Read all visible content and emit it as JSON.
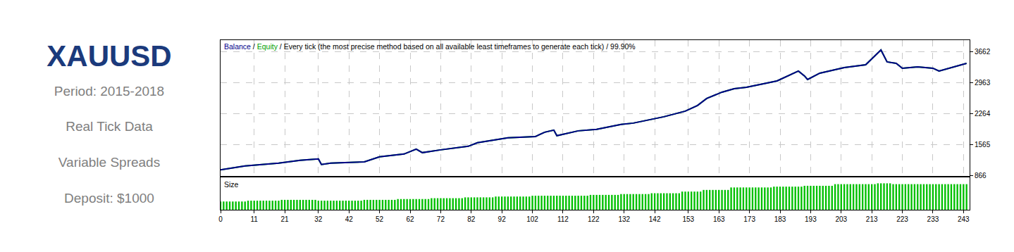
{
  "panel": {
    "title": "XAUUSD",
    "lines": [
      "Period: 2015-2018",
      "Real Tick Data",
      "Variable Spreads",
      "Deposit: $1000"
    ]
  },
  "chart_data": [
    {
      "type": "line",
      "title": "Balance / Equity / Every tick (the most precise method based on all available least timeframes to generate each tick) / 99.90%",
      "x": [
        0,
        8,
        19,
        26,
        32,
        33,
        36,
        47,
        52,
        60,
        64,
        66,
        72,
        81,
        84,
        94,
        103,
        106,
        109,
        110,
        117,
        123,
        131,
        135,
        145,
        152,
        156,
        159,
        164,
        168,
        172,
        182,
        189,
        191,
        192,
        196,
        204,
        211,
        216,
        218,
        221,
        223,
        228,
        233,
        235,
        240,
        244
      ],
      "series": [
        {
          "name": "Equity",
          "color": "#00a000",
          "values": [
            1000,
            1087,
            1150,
            1213,
            1245,
            1120,
            1150,
            1180,
            1293,
            1356,
            1466,
            1387,
            1450,
            1530,
            1610,
            1720,
            1750,
            1846,
            1893,
            1767,
            1877,
            1909,
            2020,
            2051,
            2193,
            2320,
            2446,
            2604,
            2746,
            2825,
            2857,
            2999,
            3220,
            3110,
            3031,
            3173,
            3299,
            3362,
            3694,
            3426,
            3394,
            3283,
            3315,
            3283,
            3220,
            3315,
            3394
          ]
        },
        {
          "name": "Balance",
          "color": "#00008b",
          "values": [
            1000,
            1087,
            1150,
            1213,
            1245,
            1120,
            1150,
            1180,
            1293,
            1356,
            1466,
            1387,
            1450,
            1530,
            1610,
            1720,
            1750,
            1846,
            1893,
            1767,
            1877,
            1909,
            2020,
            2051,
            2193,
            2320,
            2446,
            2604,
            2746,
            2825,
            2857,
            2999,
            3220,
            3110,
            3031,
            3173,
            3299,
            3362,
            3694,
            3426,
            3394,
            3283,
            3315,
            3283,
            3220,
            3315,
            3394
          ]
        }
      ],
      "xlim": [
        0,
        245
      ],
      "ylim": [
        866,
        3915
      ],
      "xticks": [
        0,
        11,
        21,
        32,
        42,
        52,
        62,
        72,
        82,
        92,
        102,
        112,
        122,
        132,
        142,
        153,
        163,
        173,
        183,
        193,
        203,
        213,
        223,
        233,
        243
      ],
      "yticks": [
        866,
        1565,
        2264,
        2963,
        3662
      ],
      "grid": true,
      "tick_labels": "y"
    },
    {
      "type": "bar",
      "title": "Size",
      "x": [
        0,
        1,
        2,
        3,
        4,
        5,
        6,
        7,
        8,
        9,
        10,
        11,
        12,
        13,
        14,
        15,
        16,
        17,
        18,
        19,
        20,
        21,
        22,
        23,
        24,
        25,
        26,
        27,
        28,
        29,
        30,
        31,
        32,
        33,
        34,
        35,
        36,
        37,
        38,
        39,
        40,
        41,
        42,
        43,
        44,
        45,
        46,
        47,
        48,
        49,
        50,
        51,
        52,
        53,
        54,
        55,
        56,
        57,
        58,
        59,
        60,
        61,
        62,
        63,
        64,
        65,
        66,
        67,
        68,
        69,
        70,
        71,
        72,
        73,
        74,
        75,
        76,
        77,
        78,
        79,
        80,
        81,
        82,
        83,
        84,
        85,
        86,
        87,
        88,
        89,
        90,
        91,
        92,
        93,
        94,
        95,
        96,
        97,
        98,
        99,
        100,
        101,
        102,
        103,
        104,
        105,
        106,
        107,
        108,
        109,
        110,
        111,
        112,
        113,
        114,
        115,
        116,
        117,
        118,
        119,
        120,
        121,
        122,
        123,
        124,
        125,
        126,
        127,
        128,
        129,
        130,
        131,
        132,
        133,
        134,
        135,
        136,
        137,
        138,
        139,
        140,
        141,
        142,
        143,
        144,
        145,
        146,
        147,
        148,
        149,
        150,
        151,
        152,
        153,
        154,
        155,
        156,
        157,
        158,
        159,
        160,
        161,
        162,
        163,
        164,
        165,
        166,
        167,
        168,
        169,
        170,
        171,
        172,
        173,
        174,
        175,
        176,
        177,
        178,
        179,
        180,
        181,
        182,
        183,
        184,
        185,
        186,
        187,
        188,
        189,
        190,
        191,
        192,
        193,
        194,
        195,
        196,
        197,
        198,
        199,
        200,
        201,
        202,
        203,
        204,
        205,
        206,
        207,
        208,
        209,
        210,
        211,
        212,
        213,
        214,
        215,
        216,
        217,
        218,
        219,
        220,
        221,
        222,
        223,
        224,
        225,
        226,
        227,
        228,
        229,
        230,
        231,
        232,
        233,
        234,
        235,
        236,
        237,
        238,
        239,
        240,
        241,
        242,
        243,
        244
      ],
      "values": [
        0.1,
        0.1,
        0.1,
        0.1,
        0.1,
        0.1,
        0.1,
        0.1,
        0.1,
        0.11,
        0.11,
        0.11,
        0.11,
        0.11,
        0.11,
        0.11,
        0.11,
        0.11,
        0.11,
        0.11,
        0.12,
        0.12,
        0.12,
        0.12,
        0.12,
        0.12,
        0.12,
        0.12,
        0.12,
        0.12,
        0.12,
        0.12,
        0.11,
        0.11,
        0.11,
        0.11,
        0.11,
        0.11,
        0.11,
        0.11,
        0.11,
        0.11,
        0.11,
        0.11,
        0.11,
        0.11,
        0.11,
        0.12,
        0.12,
        0.12,
        0.12,
        0.12,
        0.12,
        0.12,
        0.12,
        0.12,
        0.12,
        0.12,
        0.13,
        0.13,
        0.13,
        0.13,
        0.13,
        0.13,
        0.13,
        0.13,
        0.13,
        0.13,
        0.13,
        0.14,
        0.14,
        0.14,
        0.14,
        0.14,
        0.14,
        0.14,
        0.14,
        0.14,
        0.14,
        0.14,
        0.15,
        0.15,
        0.15,
        0.15,
        0.15,
        0.15,
        0.15,
        0.15,
        0.15,
        0.15,
        0.16,
        0.16,
        0.16,
        0.16,
        0.16,
        0.16,
        0.16,
        0.16,
        0.16,
        0.16,
        0.16,
        0.16,
        0.17,
        0.17,
        0.17,
        0.17,
        0.17,
        0.17,
        0.17,
        0.17,
        0.17,
        0.17,
        0.17,
        0.17,
        0.17,
        0.17,
        0.17,
        0.17,
        0.17,
        0.17,
        0.17,
        0.18,
        0.18,
        0.18,
        0.18,
        0.18,
        0.18,
        0.18,
        0.18,
        0.18,
        0.18,
        0.19,
        0.19,
        0.19,
        0.19,
        0.19,
        0.19,
        0.19,
        0.19,
        0.19,
        0.19,
        0.2,
        0.2,
        0.2,
        0.2,
        0.2,
        0.2,
        0.2,
        0.2,
        0.2,
        0.2,
        0.22,
        0.22,
        0.22,
        0.22,
        0.22,
        0.22,
        0.22,
        0.24,
        0.24,
        0.24,
        0.24,
        0.24,
        0.24,
        0.24,
        0.24,
        0.24,
        0.27,
        0.27,
        0.27,
        0.27,
        0.27,
        0.27,
        0.27,
        0.27,
        0.27,
        0.27,
        0.27,
        0.27,
        0.27,
        0.27,
        0.28,
        0.28,
        0.28,
        0.28,
        0.28,
        0.28,
        0.28,
        0.28,
        0.28,
        0.28,
        0.29,
        0.29,
        0.29,
        0.29,
        0.29,
        0.29,
        0.29,
        0.29,
        0.29,
        0.29,
        0.31,
        0.31,
        0.31,
        0.31,
        0.31,
        0.31,
        0.31,
        0.31,
        0.31,
        0.31,
        0.31,
        0.31,
        0.31,
        0.31,
        0.32,
        0.32,
        0.32,
        0.32,
        0.32,
        0.31,
        0.31,
        0.31,
        0.31,
        0.31,
        0.31,
        0.31,
        0.31,
        0.31,
        0.31,
        0.31,
        0.31,
        0.31,
        0.31,
        0.31,
        0.31,
        0.31,
        0.31,
        0.31,
        0.31,
        0.31,
        0.31,
        0.31,
        0.31,
        0.31
      ],
      "color": "#00c000",
      "xlim": [
        0,
        245
      ],
      "ylim": [
        0,
        0.39
      ],
      "xticks": [
        0,
        11,
        21,
        32,
        42,
        52,
        62,
        72,
        82,
        92,
        102,
        112,
        122,
        132,
        142,
        153,
        163,
        173,
        183,
        193,
        203,
        213,
        223,
        233,
        243
      ],
      "grid": false,
      "tick_labels": "x"
    }
  ]
}
